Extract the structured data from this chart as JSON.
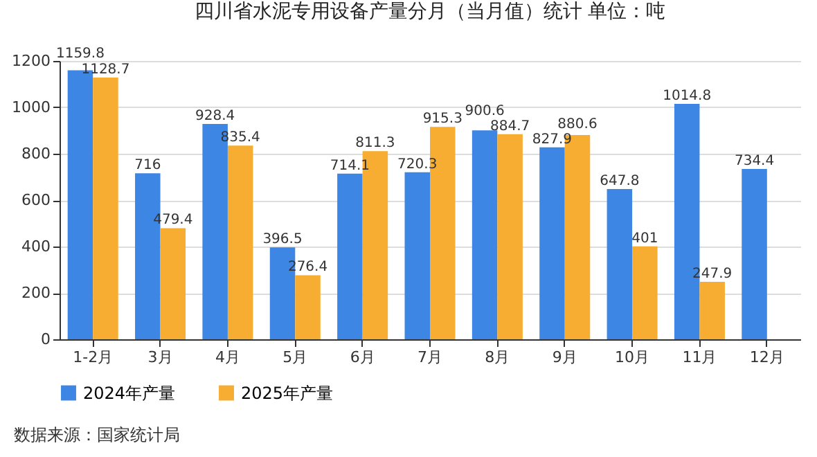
{
  "chart_data": {
    "type": "bar",
    "title": "四川省水泥专用设备产量分月（当月值）统计 单位：吨",
    "categories": [
      "1-2月",
      "3月",
      "4月",
      "5月",
      "6月",
      "7月",
      "8月",
      "9月",
      "10月",
      "11月",
      "12月"
    ],
    "series": [
      {
        "name": "2024年产量",
        "color": "#3d86e4",
        "values": [
          1159.8,
          716,
          928.4,
          396.5,
          714.1,
          720.3,
          900.6,
          827.9,
          647.8,
          1014.8,
          734.4
        ]
      },
      {
        "name": "2025年产量",
        "color": "#f7ad32",
        "values": [
          1128.7,
          479.4,
          835.4,
          276.4,
          811.3,
          915.3,
          884.7,
          880.6,
          401,
          247.9,
          null
        ]
      }
    ],
    "ylim": [
      0,
      1200
    ],
    "yticks": [
      0,
      200,
      400,
      600,
      800,
      1000,
      1200
    ],
    "grid": "y",
    "legend": "bottom",
    "data_labels": true,
    "annotations": [
      "数据来源：国家统计局"
    ]
  }
}
